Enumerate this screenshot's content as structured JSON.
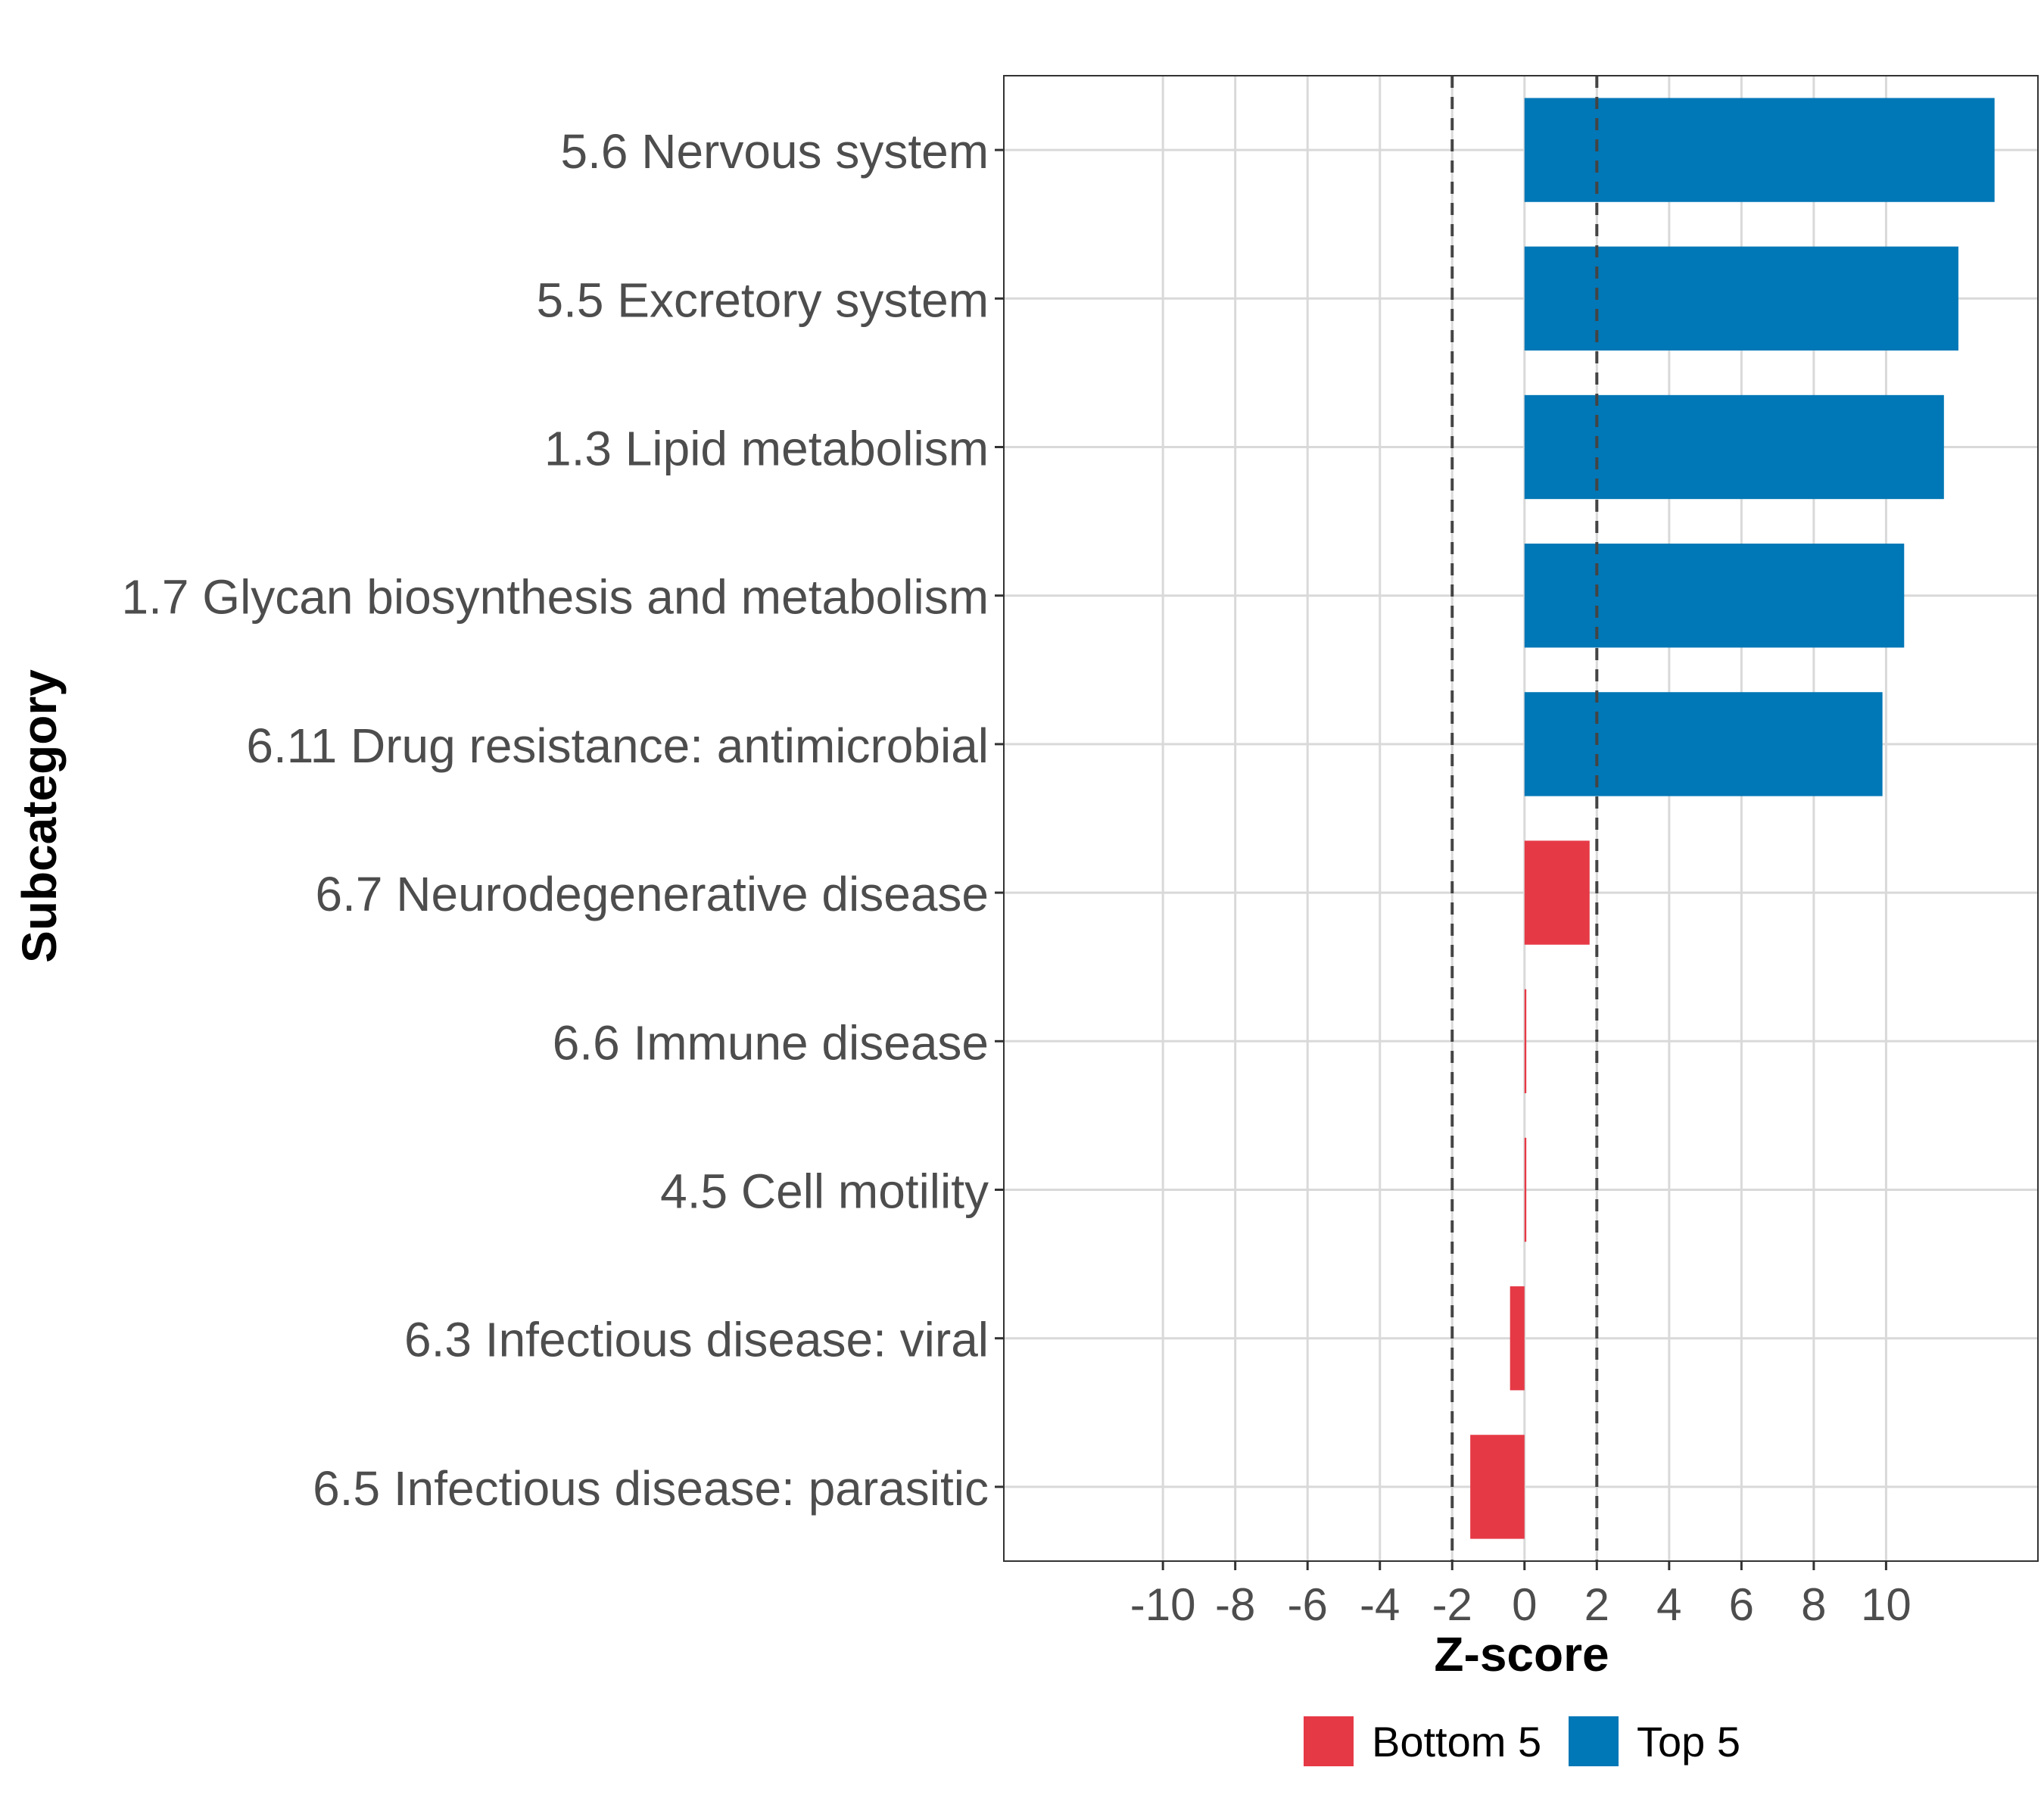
{
  "chart_data": {
    "type": "bar",
    "orientation": "horizontal",
    "title": "",
    "xlabel": "Z-score",
    "ylabel": "Subcategory",
    "xlim": [
      -14.4,
      14.2
    ],
    "xticks": [
      -10,
      -8,
      -6,
      -4,
      -2,
      0,
      2,
      4,
      6,
      8,
      10
    ],
    "xtick_labels": [
      "-10",
      "-8",
      "-6",
      "-4",
      "-2",
      "0",
      "2",
      "4",
      "6",
      "8",
      "10"
    ],
    "reference_lines": [
      -2,
      2
    ],
    "grid": true,
    "categories": [
      "5.6 Nervous system",
      "5.5 Excretory system",
      "1.3 Lipid metabolism",
      "1.7 Glycan biosynthesis and metabolism",
      "6.11 Drug resistance: antimicrobial",
      "6.7 Neurodegenerative disease",
      "6.6 Immune disease",
      "4.5 Cell motility",
      "6.3 Infectious disease: viral",
      "6.5 Infectious disease: parasitic"
    ],
    "values": [
      13.0,
      12.0,
      11.6,
      10.5,
      9.9,
      1.8,
      0.05,
      0.05,
      -0.4,
      -1.5
    ],
    "groups": [
      "Top 5",
      "Top 5",
      "Top 5",
      "Top 5",
      "Top 5",
      "Bottom 5",
      "Bottom 5",
      "Bottom 5",
      "Bottom 5",
      "Bottom 5"
    ],
    "legend": {
      "position": "bottom",
      "entries": [
        {
          "label": "Bottom 5",
          "color": "#e63946"
        },
        {
          "label": "Top 5",
          "color": "#0077b6"
        }
      ]
    }
  }
}
